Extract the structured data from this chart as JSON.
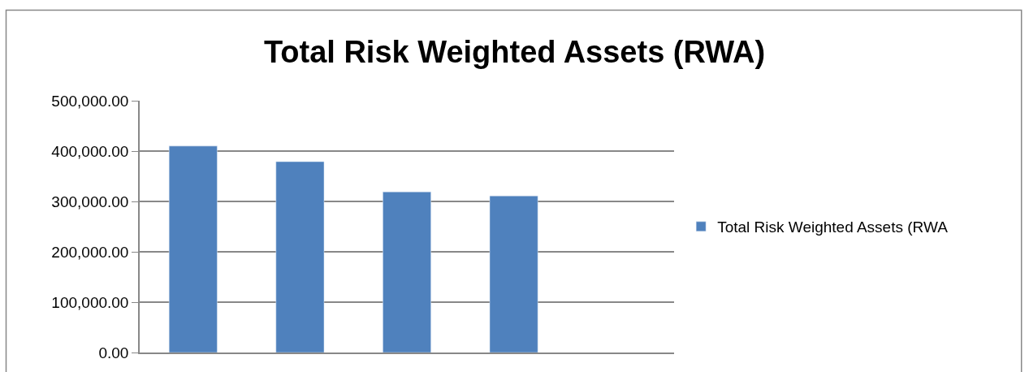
{
  "chart_data": {
    "type": "bar",
    "title": "Total Risk Weighted Assets (RWA)",
    "categories": [
      null,
      null,
      null,
      null,
      null
    ],
    "series": [
      {
        "name": "Total Risk Weighted Assets (RWA",
        "color": "#4f81bd",
        "values": [
          410000,
          379000,
          319000,
          311000,
          null
        ]
      }
    ],
    "ylim": [
      0,
      500000
    ],
    "yticks": [
      {
        "value": 0,
        "label": "0.00"
      },
      {
        "value": 100000,
        "label": "100,000.00"
      },
      {
        "value": 200000,
        "label": "200,000.00"
      },
      {
        "value": 300000,
        "label": "300,000.00"
      },
      {
        "value": 400000,
        "label": "400,000.00"
      },
      {
        "value": 500000,
        "label": "500,000.00"
      }
    ],
    "grid": "y",
    "legend": "right"
  }
}
